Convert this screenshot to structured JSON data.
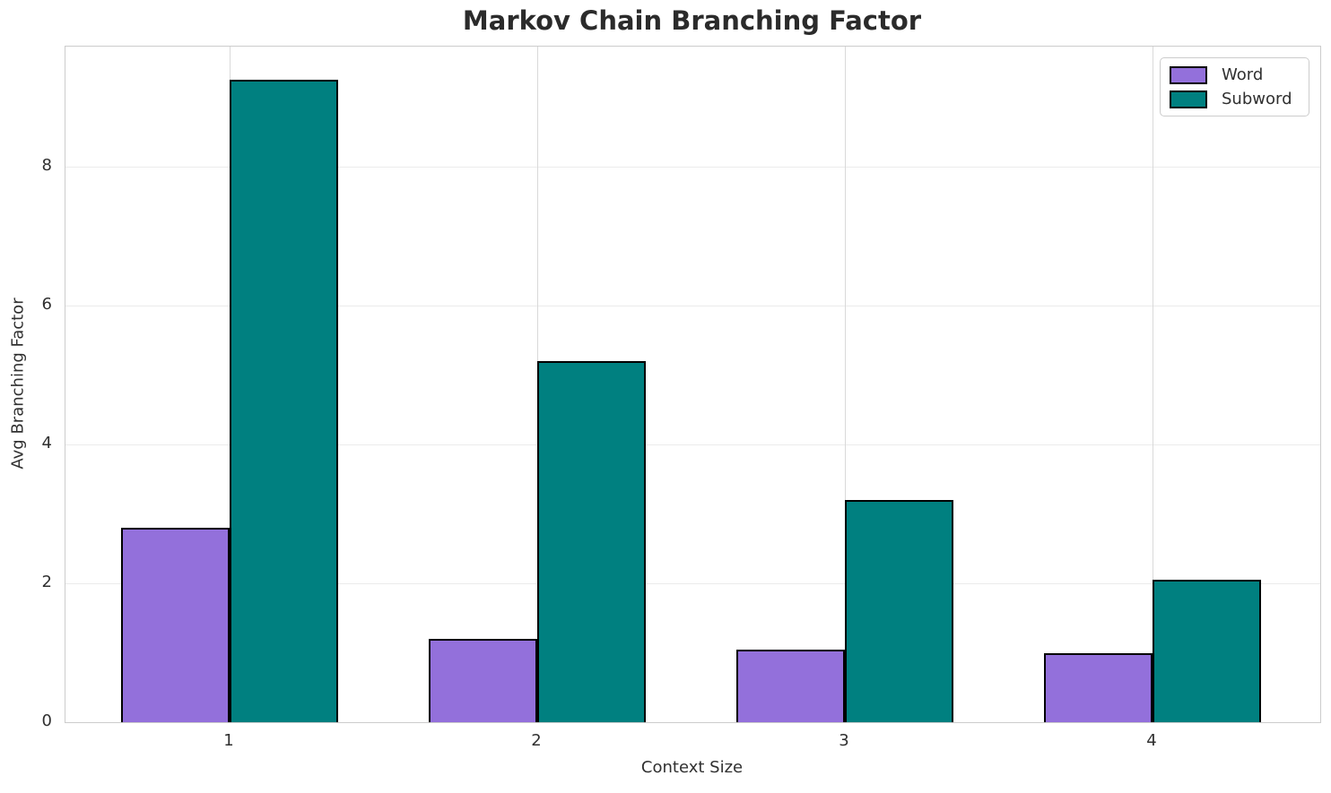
{
  "chart_data": {
    "type": "bar",
    "title": "Markov Chain Branching Factor",
    "xlabel": "Context Size",
    "ylabel": "Avg Branching Factor",
    "categories": [
      "1",
      "2",
      "3",
      "4"
    ],
    "series": [
      {
        "name": "Word",
        "color": "#9370DB",
        "values": [
          2.8,
          1.2,
          1.05,
          1.0
        ]
      },
      {
        "name": "Subword",
        "color": "#008080",
        "values": [
          9.25,
          5.2,
          3.2,
          2.05
        ]
      }
    ],
    "bar_edge_color": "#000000",
    "yticks": [
      0,
      2,
      4,
      6,
      8
    ],
    "ylim": [
      0,
      9.73
    ],
    "grid": true,
    "legend_position": "upper right"
  }
}
